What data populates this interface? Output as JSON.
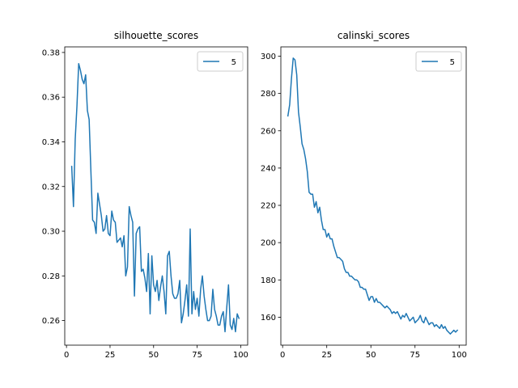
{
  "chart_data": [
    {
      "type": "line",
      "title": "silhouette_scores",
      "xlabel": "",
      "ylabel": "",
      "xlim": [
        -1,
        104
      ],
      "ylim": [
        0.249,
        0.3825
      ],
      "xticks": [
        0,
        25,
        50,
        75,
        100
      ],
      "xtick_labels": [
        "0",
        "25",
        "50",
        "75",
        "100"
      ],
      "yticks": [
        0.26,
        0.28,
        0.3,
        0.32,
        0.34,
        0.36,
        0.38
      ],
      "ytick_labels": [
        "0.26",
        "0.28",
        "0.30",
        "0.32",
        "0.34",
        "0.36",
        "0.38"
      ],
      "legend": "top-right",
      "series": [
        {
          "name": "5",
          "color": "#1f77b4",
          "x": [
            3,
            4,
            5,
            6,
            7,
            8,
            9,
            10,
            11,
            12,
            13,
            14,
            15,
            16,
            17,
            18,
            19,
            20,
            21,
            22,
            23,
            24,
            25,
            26,
            27,
            28,
            29,
            30,
            31,
            32,
            33,
            34,
            35,
            36,
            37,
            38,
            39,
            40,
            41,
            42,
            43,
            44,
            45,
            46,
            47,
            48,
            49,
            50,
            51,
            52,
            53,
            54,
            55,
            56,
            57,
            58,
            59,
            60,
            61,
            62,
            63,
            64,
            65,
            66,
            67,
            68,
            69,
            70,
            71,
            72,
            73,
            74,
            75,
            76,
            77,
            78,
            79,
            80,
            81,
            82,
            83,
            84,
            85,
            86,
            87,
            88,
            89,
            90,
            91,
            92,
            93,
            94,
            95,
            96,
            97,
            98,
            99
          ],
          "y": [
            0.329,
            0.311,
            0.341,
            0.356,
            0.375,
            0.372,
            0.368,
            0.366,
            0.37,
            0.354,
            0.35,
            0.327,
            0.305,
            0.304,
            0.299,
            0.317,
            0.312,
            0.307,
            0.3,
            0.301,
            0.307,
            0.299,
            0.298,
            0.309,
            0.305,
            0.304,
            0.295,
            0.296,
            0.297,
            0.293,
            0.298,
            0.28,
            0.284,
            0.311,
            0.307,
            0.304,
            0.271,
            0.299,
            0.301,
            0.302,
            0.282,
            0.283,
            0.279,
            0.273,
            0.29,
            0.263,
            0.289,
            0.276,
            0.273,
            0.278,
            0.269,
            0.275,
            0.28,
            0.273,
            0.263,
            0.289,
            0.291,
            0.28,
            0.272,
            0.27,
            0.27,
            0.272,
            0.278,
            0.259,
            0.263,
            0.269,
            0.276,
            0.262,
            0.301,
            0.263,
            0.273,
            0.265,
            0.27,
            0.262,
            0.274,
            0.28,
            0.271,
            0.265,
            0.26,
            0.26,
            0.262,
            0.274,
            0.265,
            0.262,
            0.258,
            0.258,
            0.262,
            0.264,
            0.255,
            0.266,
            0.276,
            0.258,
            0.256,
            0.261,
            0.255,
            0.263,
            0.261
          ]
        }
      ]
    },
    {
      "type": "line",
      "title": "calinski_scores",
      "xlabel": "",
      "ylabel": "",
      "xlim": [
        -1,
        104
      ],
      "ylim": [
        145,
        305
      ],
      "xticks": [
        0,
        25,
        50,
        75,
        100
      ],
      "xtick_labels": [
        "0",
        "25",
        "50",
        "75",
        "100"
      ],
      "yticks": [
        160,
        180,
        200,
        220,
        240,
        260,
        280,
        300
      ],
      "ytick_labels": [
        "160",
        "180",
        "200",
        "220",
        "240",
        "260",
        "280",
        "300"
      ],
      "legend": "top-right",
      "series": [
        {
          "name": "5",
          "color": "#1f77b4",
          "x": [
            3,
            4,
            5,
            6,
            7,
            8,
            9,
            10,
            11,
            12,
            13,
            14,
            15,
            16,
            17,
            18,
            19,
            20,
            21,
            22,
            23,
            24,
            25,
            26,
            27,
            28,
            29,
            30,
            31,
            32,
            33,
            34,
            35,
            36,
            37,
            38,
            39,
            40,
            41,
            42,
            43,
            44,
            45,
            46,
            47,
            48,
            49,
            50,
            51,
            52,
            53,
            54,
            55,
            56,
            57,
            58,
            59,
            60,
            61,
            62,
            63,
            64,
            65,
            66,
            67,
            68,
            69,
            70,
            71,
            72,
            73,
            74,
            75,
            76,
            77,
            78,
            79,
            80,
            81,
            82,
            83,
            84,
            85,
            86,
            87,
            88,
            89,
            90,
            91,
            92,
            93,
            94,
            95,
            96,
            97,
            98,
            99
          ],
          "y": [
            268,
            274,
            288,
            299,
            298,
            290,
            270,
            262,
            253,
            250,
            245,
            238,
            227,
            226,
            226,
            219,
            222,
            216,
            219,
            212,
            207,
            207,
            203,
            205,
            202,
            202,
            198,
            195,
            192,
            192,
            191,
            190,
            186,
            184,
            184,
            182,
            182,
            181,
            180,
            180,
            179,
            176,
            176,
            175,
            175,
            172,
            169,
            171,
            171,
            168,
            170,
            168,
            168,
            167,
            166,
            165,
            166,
            165,
            164,
            162,
            163,
            162,
            163,
            161,
            159,
            161,
            160,
            162,
            160,
            158,
            159,
            160,
            157,
            158,
            159,
            161,
            158,
            157,
            160,
            158,
            156,
            157,
            157,
            155,
            156,
            155,
            154,
            156,
            154,
            155,
            153,
            152,
            151,
            152,
            153,
            152,
            153
          ]
        }
      ]
    }
  ]
}
